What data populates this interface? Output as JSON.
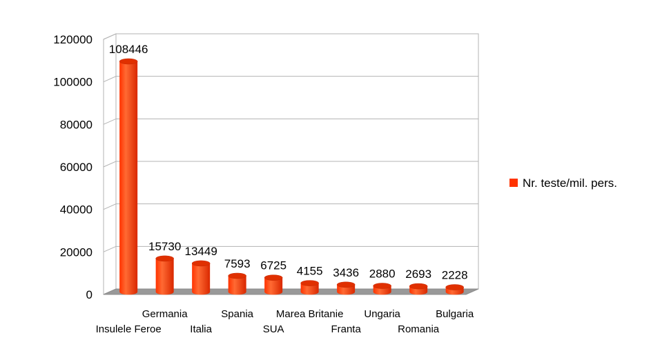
{
  "chart_data": {
    "type": "bar",
    "categories": [
      "Insulele Feroe",
      "Germania",
      "Italia",
      "Spania",
      "SUA",
      "Marea Britanie",
      "Franta",
      "Ungaria",
      "Romania",
      "Bulgaria"
    ],
    "series": [
      {
        "name": "Nr. teste/mil. pers.",
        "values": [
          108446,
          15730,
          13449,
          7593,
          6725,
          4155,
          3436,
          2880,
          2693,
          2228
        ],
        "color": "#ff3300"
      }
    ],
    "ylim": [
      0,
      120000
    ],
    "yticks": [
      0,
      20000,
      40000,
      60000,
      80000,
      100000,
      120000
    ],
    "grid": true,
    "legend_position": "right",
    "style": "3d-cylinder"
  }
}
